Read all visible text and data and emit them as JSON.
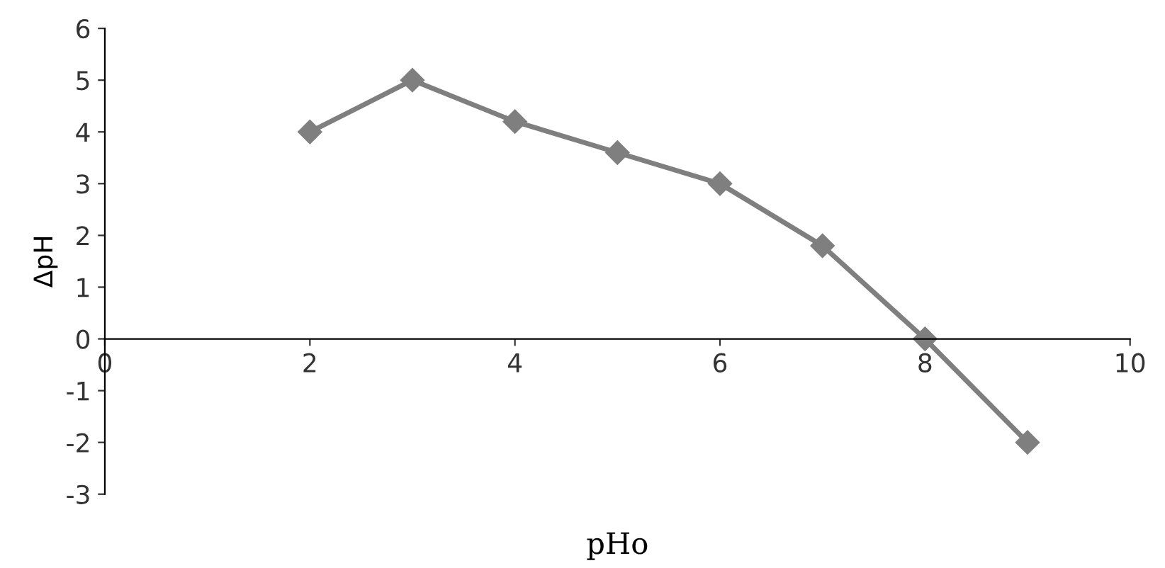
{
  "chart_data": {
    "type": "line",
    "xlabel": "pHo",
    "ylabel": "ΔpH",
    "x": [
      2,
      3,
      4,
      5,
      6,
      7,
      8,
      9
    ],
    "series": [
      {
        "color": "#7f7f7f",
        "values": [
          4.0,
          5.0,
          4.2,
          3.6,
          3.0,
          1.8,
          0.0,
          -2.0
        ]
      }
    ],
    "xlim": [
      0,
      10
    ],
    "xticks": [
      0,
      2,
      4,
      6,
      8,
      10
    ],
    "ylim": [
      -3,
      6
    ],
    "yticks": [
      -3,
      -2,
      -1,
      0,
      1,
      2,
      3,
      4,
      5,
      6
    ],
    "marker": "diamond",
    "line_style": "solid"
  }
}
